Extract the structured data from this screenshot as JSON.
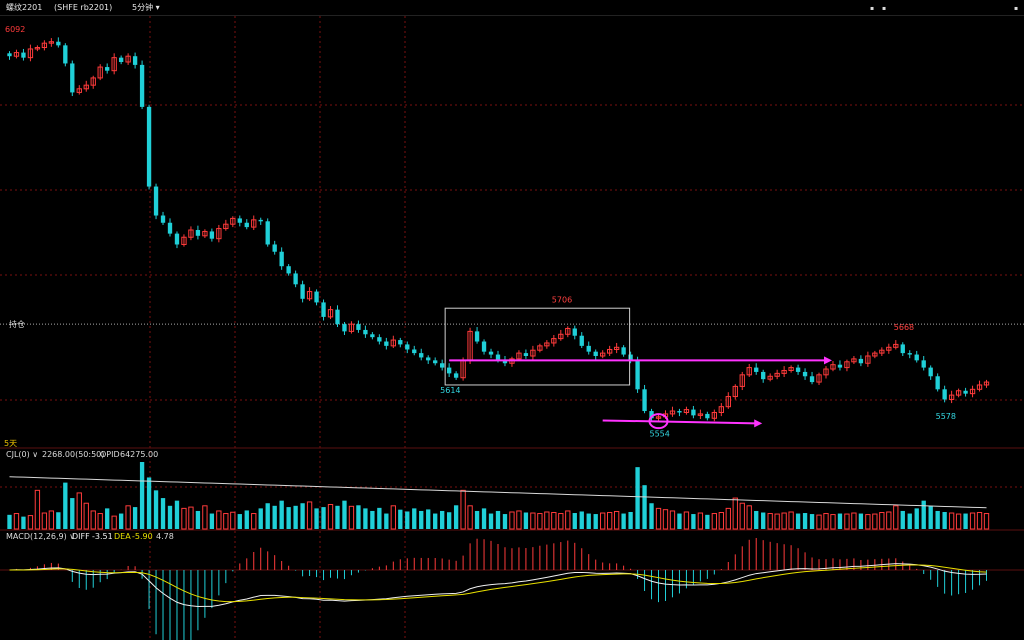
{
  "header": {
    "title": "螺纹2201",
    "exchange": "(SHFE rb2201)",
    "period": "5分钟",
    "window_dots": [
      "▪",
      "▪",
      "▪"
    ]
  },
  "chart_data": {
    "type": "candlestick",
    "price_top_label": "6092",
    "price_ylim": [
      5530,
      6110
    ],
    "current_line_label": "持仓",
    "current_line_price": 5690,
    "bottom_tag": "5天",
    "annotations": [
      {
        "idx": 79,
        "price": 5706,
        "text": "5706",
        "color": "#ff4040",
        "pos": "above"
      },
      {
        "idx": 63,
        "price": 5614,
        "text": "5614",
        "color": "#33d6e0",
        "pos": "below"
      },
      {
        "idx": 93,
        "price": 5554,
        "text": "5554",
        "color": "#33d6e0",
        "pos": "below"
      },
      {
        "idx": 128,
        "price": 5668,
        "text": "5668",
        "color": "#ff4040",
        "pos": "above"
      },
      {
        "idx": 134,
        "price": 5578,
        "text": "5578",
        "color": "#33d6e0",
        "pos": "below"
      }
    ],
    "closes": [
      6060,
      6065,
      6058,
      6070,
      6072,
      6078,
      6080,
      6075,
      6050,
      6010,
      6015,
      6020,
      6030,
      6045,
      6040,
      6058,
      6052,
      6060,
      6048,
      5990,
      5880,
      5840,
      5830,
      5815,
      5800,
      5810,
      5820,
      5812,
      5818,
      5808,
      5822,
      5828,
      5836,
      5830,
      5824,
      5834,
      5832,
      5800,
      5790,
      5770,
      5760,
      5745,
      5725,
      5735,
      5720,
      5700,
      5710,
      5690,
      5680,
      5690,
      5682,
      5676,
      5672,
      5666,
      5660,
      5668,
      5662,
      5655,
      5650,
      5644,
      5640,
      5636,
      5630,
      5622,
      5616,
      5640,
      5680,
      5666,
      5652,
      5648,
      5640,
      5636,
      5642,
      5650,
      5646,
      5654,
      5660,
      5664,
      5670,
      5676,
      5684,
      5674,
      5660,
      5652,
      5646,
      5650,
      5655,
      5658,
      5648,
      5640,
      5600,
      5570,
      5560,
      5562,
      5566,
      5570,
      5568,
      5572,
      5564,
      5566,
      5560,
      5568,
      5576,
      5590,
      5604,
      5620,
      5630,
      5624,
      5614,
      5618,
      5622,
      5626,
      5630,
      5624,
      5618,
      5610,
      5620,
      5628,
      5634,
      5630,
      5638,
      5642,
      5636,
      5646,
      5650,
      5654,
      5658,
      5662,
      5650,
      5648,
      5640,
      5630,
      5618,
      5600,
      5586,
      5592,
      5598,
      5594,
      5600,
      5606,
      5610
    ],
    "volume_label": "CJL(0)",
    "volume_value": "2268.00(50:50)",
    "opid_label": "OPID",
    "opid_value": "64275.00",
    "volumes": [
      55,
      60,
      48,
      52,
      150,
      62,
      70,
      65,
      180,
      120,
      140,
      100,
      70,
      60,
      80,
      50,
      60,
      90,
      85,
      260,
      200,
      150,
      120,
      90,
      110,
      80,
      85,
      70,
      90,
      60,
      70,
      60,
      65,
      58,
      72,
      60,
      80,
      100,
      90,
      110,
      85,
      90,
      100,
      105,
      80,
      85,
      95,
      90,
      110,
      88,
      92,
      80,
      70,
      82,
      60,
      90,
      75,
      68,
      80,
      70,
      76,
      60,
      70,
      65,
      92,
      150,
      90,
      70,
      80,
      60,
      70,
      58,
      66,
      70,
      64,
      62,
      60,
      66,
      64,
      60,
      70,
      62,
      68,
      60,
      58,
      62,
      64,
      68,
      60,
      66,
      240,
      170,
      100,
      80,
      75,
      70,
      60,
      66,
      58,
      62,
      55,
      60,
      64,
      80,
      120,
      100,
      90,
      70,
      64,
      60,
      58,
      62,
      66,
      60,
      62,
      58,
      54,
      60,
      56,
      60,
      58,
      62,
      60,
      56,
      58,
      64,
      66,
      90,
      70,
      60,
      80,
      110,
      90,
      70,
      66,
      62,
      58,
      60,
      62,
      64,
      60
    ],
    "macd_label": "MACD(12,26,9)",
    "diff_label": "DIFF",
    "diff_value": "-3.51",
    "dea_label": "DEA",
    "dea_value": "-5.90",
    "macd_value": "4.78"
  },
  "colors": {
    "up": "#ff3b3b",
    "down": "#20d0d8",
    "grid": "#7a1010",
    "annotation": "#ff33ff",
    "diff": "#f0f0f0",
    "dea": "#e8e000"
  }
}
